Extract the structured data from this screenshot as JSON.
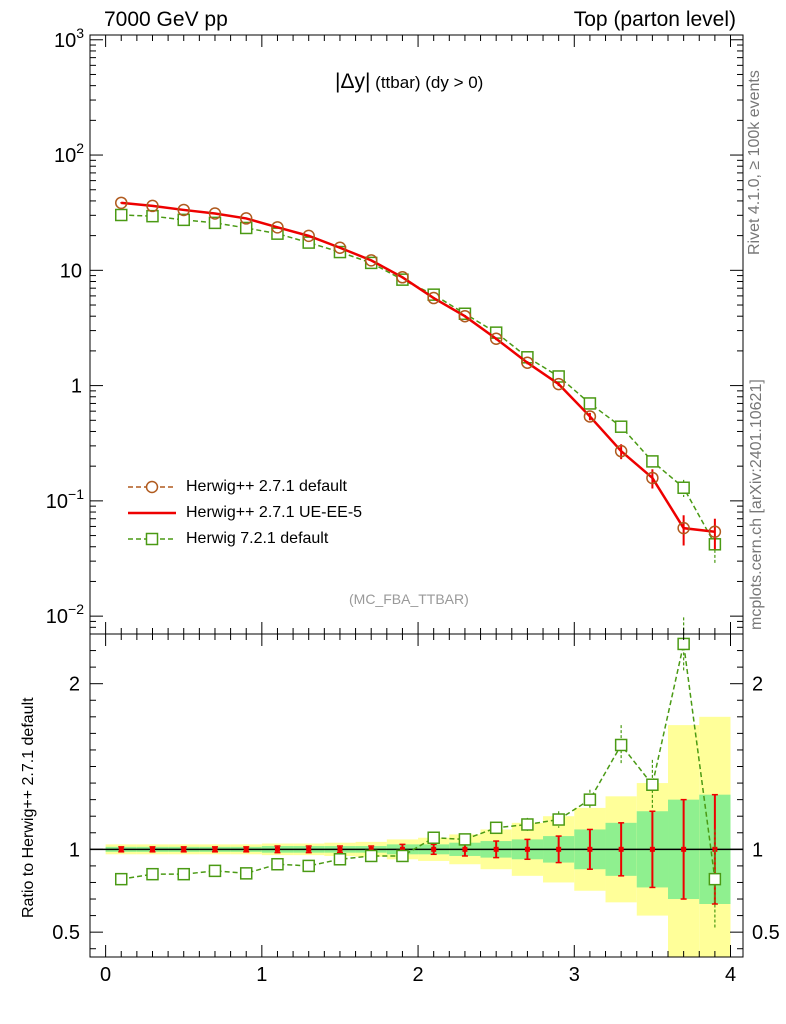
{
  "header": {
    "left": "7000 GeV pp",
    "right": "Top (parton level)"
  },
  "side_labels": {
    "rivet": "Rivet 4.1.0, ≥ 100k events",
    "mcplots": "mcplots.cern.ch [arXiv:2401.10621]"
  },
  "observable": {
    "symbol": "|Δy|",
    "suffix": "(ttbar)  (dy > 0)"
  },
  "analysis_tag": "(MC_FBA_TTBAR)",
  "colors": {
    "herwigpp_default": "#b05a1e",
    "herwigpp_ueee5": "#ee0000",
    "herwig72": "#4a9a14",
    "band_inner": "#8ff08f",
    "band_outer": "#ffff99"
  },
  "chart_data": [
    {
      "type": "line",
      "panel": "main",
      "yscale": "log",
      "xlim": [
        -0.1,
        4.08
      ],
      "ylim": [
        0.007,
        1100
      ],
      "y_ticks": [
        {
          "value": 0.01,
          "base": "10",
          "exp": "−2"
        },
        {
          "value": 0.1,
          "base": "10",
          "exp": "−1"
        },
        {
          "value": 1,
          "base": "1",
          "exp": ""
        },
        {
          "value": 10,
          "base": "10",
          "exp": ""
        },
        {
          "value": 100,
          "base": "10",
          "exp": "2"
        },
        {
          "value": 1000,
          "base": "10",
          "exp": "3"
        }
      ],
      "x": [
        0.1,
        0.3,
        0.5,
        0.7,
        0.9,
        1.1,
        1.3,
        1.5,
        1.7,
        1.9,
        2.1,
        2.3,
        2.5,
        2.7,
        2.9,
        3.1,
        3.3,
        3.5,
        3.7,
        3.9
      ],
      "legend_position": "bottom-left",
      "series": [
        {
          "name": "Herwig++ 2.7.1 default",
          "style": "dashed-circle",
          "values": [
            38.5,
            36.2,
            33.4,
            31.1,
            28.2,
            23.6,
            19.9,
            15.7,
            12.2,
            8.7,
            5.75,
            4.0,
            2.55,
            1.58,
            1.03,
            0.54,
            0.27,
            0.158,
            0.058,
            0.054
          ],
          "errors": [
            0.5,
            0.5,
            0.45,
            0.4,
            0.4,
            0.35,
            0.3,
            0.25,
            0.2,
            0.16,
            0.12,
            0.09,
            0.07,
            0.05,
            0.04,
            0.04,
            0.04,
            0.03,
            0.017,
            0.016
          ]
        },
        {
          "name": "Herwig++ 2.7.1 UE-EE-5",
          "style": "solid",
          "values": [
            38.5,
            36.2,
            33.4,
            31.1,
            28.2,
            23.6,
            19.9,
            15.7,
            12.2,
            8.7,
            5.75,
            4.0,
            2.55,
            1.58,
            1.03,
            0.54,
            0.27,
            0.158,
            0.058,
            0.054
          ]
        },
        {
          "name": "Herwig 7.2.1 default",
          "style": "dashed-square",
          "values": [
            30.2,
            29.5,
            27.4,
            25.8,
            23.3,
            20.8,
            17.4,
            14.4,
            11.6,
            8.3,
            6.15,
            4.2,
            2.88,
            1.76,
            1.2,
            0.7,
            0.44,
            0.22,
            0.13,
            0.042
          ],
          "errors": [
            0.5,
            0.5,
            0.45,
            0.4,
            0.4,
            0.35,
            0.3,
            0.25,
            0.2,
            0.16,
            0.12,
            0.09,
            0.07,
            0.05,
            0.04,
            0.04,
            0.035,
            0.025,
            0.022,
            0.014
          ]
        }
      ]
    },
    {
      "type": "line",
      "panel": "ratio",
      "ylabel": "Ratio to Herwig++ 2.7.1 default",
      "xlim": [
        -0.1,
        4.08
      ],
      "ylim": [
        0.35,
        2.3
      ],
      "x_ticks": [
        0,
        1,
        2,
        3,
        4
      ],
      "y_ticks": [
        0.5,
        1,
        2
      ],
      "x": [
        0.1,
        0.3,
        0.5,
        0.7,
        0.9,
        1.1,
        1.3,
        1.5,
        1.7,
        1.9,
        2.1,
        2.3,
        2.5,
        2.7,
        2.9,
        3.1,
        3.3,
        3.5,
        3.7,
        3.9
      ],
      "band_inner": [
        0.015,
        0.015,
        0.015,
        0.015,
        0.015,
        0.02,
        0.02,
        0.02,
        0.02,
        0.03,
        0.03,
        0.04,
        0.05,
        0.06,
        0.08,
        0.12,
        0.16,
        0.23,
        0.3,
        0.33
      ],
      "band_outer": [
        0.03,
        0.03,
        0.03,
        0.03,
        0.03,
        0.035,
        0.035,
        0.04,
        0.045,
        0.06,
        0.07,
        0.09,
        0.12,
        0.16,
        0.2,
        0.25,
        0.32,
        0.4,
        0.75,
        0.8
      ],
      "series": [
        {
          "name": "Herwig++ 2.7.1 UE-EE-5",
          "values": [
            1,
            1,
            1,
            1,
            1,
            1,
            1,
            1,
            1,
            1,
            1,
            1,
            1,
            1,
            1,
            1,
            1,
            1,
            1,
            1
          ],
          "errors": [
            0.015,
            0.015,
            0.015,
            0.015,
            0.015,
            0.02,
            0.02,
            0.02,
            0.02,
            0.03,
            0.03,
            0.04,
            0.05,
            0.06,
            0.08,
            0.12,
            0.16,
            0.23,
            0.3,
            0.33
          ]
        },
        {
          "name": "Herwig 7.2.1 default",
          "values": [
            0.82,
            0.85,
            0.85,
            0.87,
            0.855,
            0.91,
            0.9,
            0.94,
            0.96,
            0.96,
            1.07,
            1.06,
            1.13,
            1.15,
            1.18,
            1.3,
            1.63,
            1.39,
            2.24,
            0.82
          ],
          "errors": [
            0.01,
            0.01,
            0.01,
            0.01,
            0.01,
            0.015,
            0.015,
            0.015,
            0.02,
            0.025,
            0.025,
            0.025,
            0.03,
            0.04,
            0.05,
            0.06,
            0.12,
            0.15,
            0.16,
            0.3
          ]
        }
      ]
    }
  ]
}
